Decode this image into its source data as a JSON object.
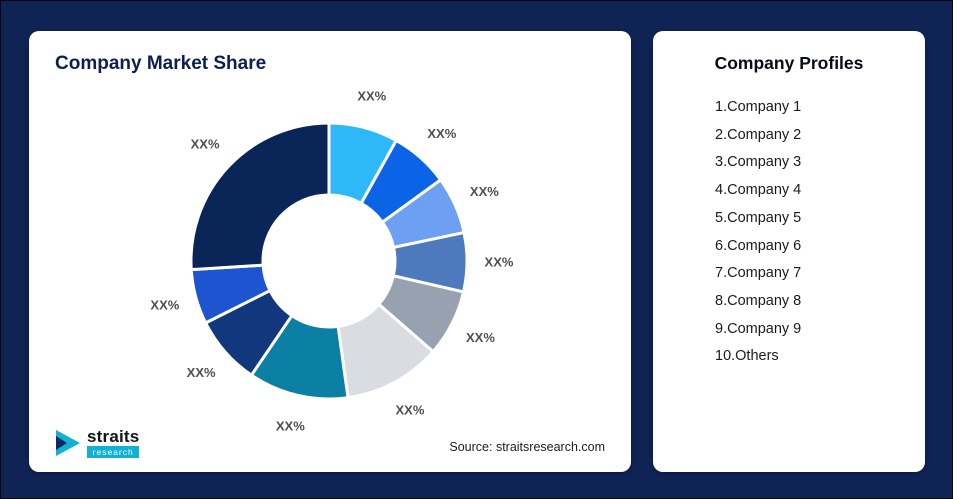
{
  "page": {
    "background": "#0f2455"
  },
  "left_card": {
    "title": "Company Market Share",
    "source": "Source: straitsresearch.com",
    "logo": {
      "name": "straits",
      "sub": "research",
      "accent_color": "#12b0d3",
      "navy_color": "#0d2a5e"
    }
  },
  "right_card": {
    "title": "Company Profiles",
    "items": [
      "1.Company 1",
      "2.Company 2",
      "3.Company 3",
      "4.Company 4",
      "5.Company 5",
      "6.Company 6",
      "7.Company 7",
      "8.Company 8",
      "9.Company 9",
      "10.Others"
    ]
  },
  "chart_data": {
    "type": "pie",
    "donut": true,
    "title": "Company Market Share",
    "start_angle_deg_from_top": 0,
    "direction": "clockwise",
    "inner_radius_ratio": 0.48,
    "legend_position": "none",
    "series_names": [
      "Company 1",
      "Company 2",
      "Company 3",
      "Company 4",
      "Company 5",
      "Company 6",
      "Company 7",
      "Company 8",
      "Company 9",
      "Others"
    ],
    "labels": [
      "XX%",
      "XX%",
      "XX%",
      "XX%",
      "XX%",
      "XX%",
      "XX%",
      "XX%",
      "XX%",
      "XX%"
    ],
    "values": [
      8.1,
      6.9,
      6.7,
      6.9,
      7.8,
      11.4,
      11.7,
      8.1,
      6.4,
      26.0
    ],
    "colors": [
      "#2eb8f7",
      "#0b63e5",
      "#6d9ff2",
      "#4e79bd",
      "#98a1af",
      "#d9dde2",
      "#0c7fa5",
      "#11387c",
      "#1d55d0",
      "#0a2558"
    ]
  }
}
